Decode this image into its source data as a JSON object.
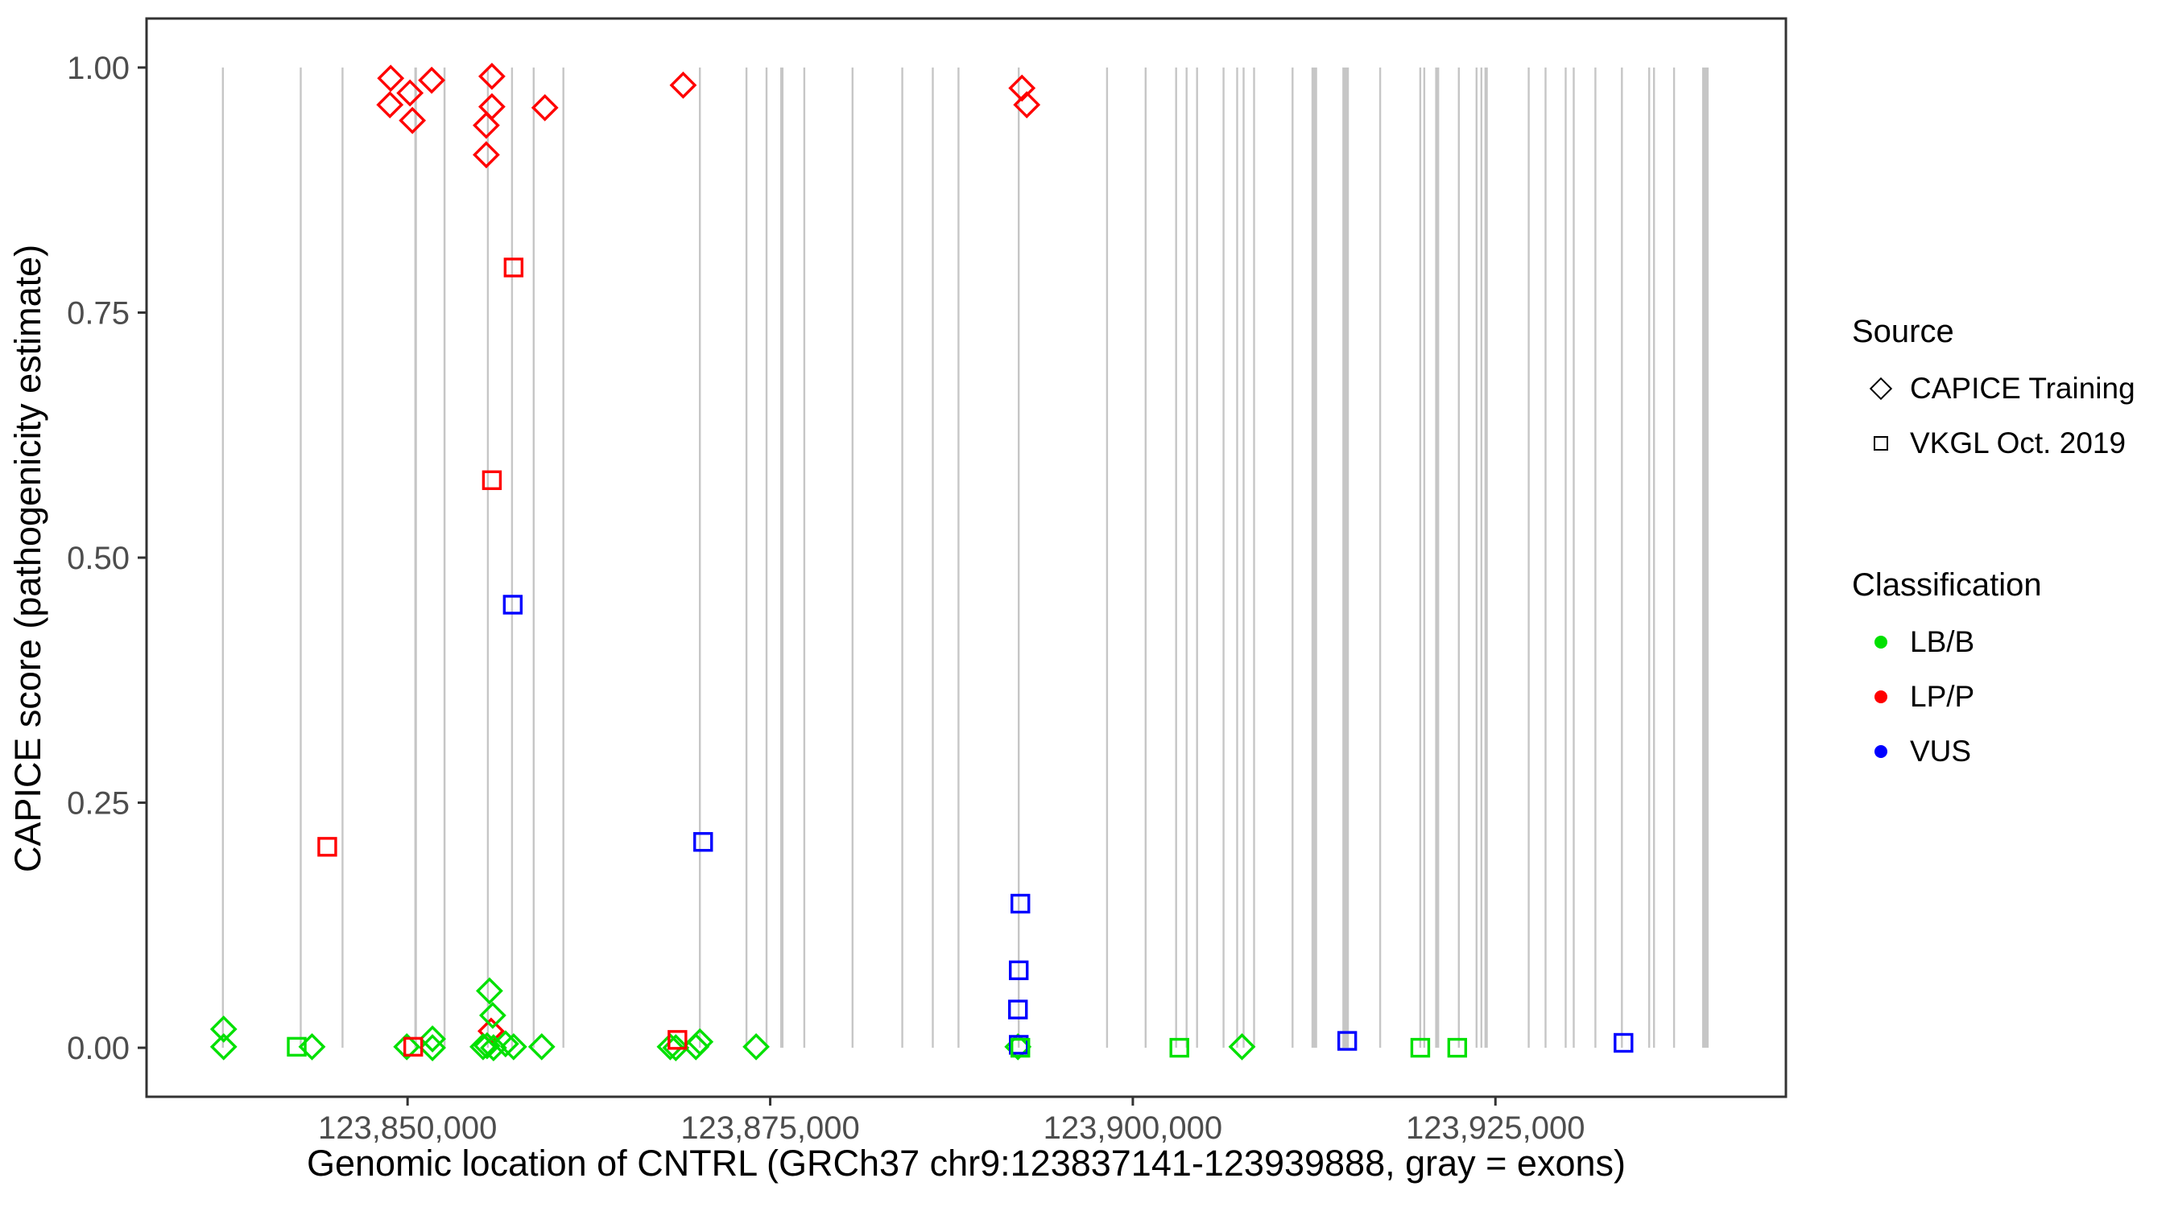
{
  "page": {
    "background": "#ffffff"
  },
  "axis_titles": {
    "x": "Genomic location of CNTRL (GRCh37 chr9:123837141-123939888, gray = exons)",
    "y": "CAPICE score (pathogenicity estimate)"
  },
  "legend": {
    "source": {
      "title": "Source",
      "items": [
        {
          "label": "CAPICE Training",
          "shape": "diamond"
        },
        {
          "label": "VKGL Oct. 2019",
          "shape": "square"
        }
      ]
    },
    "classification": {
      "title": "Classification",
      "items": [
        {
          "label": "LB/B",
          "color": "#00E000"
        },
        {
          "label": "LP/P",
          "color": "#FF0000"
        },
        {
          "label": "VUS",
          "color": "#0000FF"
        }
      ]
    }
  },
  "chart_data": {
    "type": "scatter",
    "title": "",
    "xlabel": "Genomic location of CNTRL (GRCh37 chr9:123837141-123939888, gray = exons)",
    "ylabel": "CAPICE score (pathogenicity estimate)",
    "xlim": [
      123832004,
      123945025
    ],
    "ylim": [
      -0.05,
      1.05
    ],
    "grid": false,
    "legend_position": "right",
    "x_ticks": [
      {
        "pos": 123850000,
        "label": "123,850,000"
      },
      {
        "pos": 123875000,
        "label": "123,875,000"
      },
      {
        "pos": 123900000,
        "label": "123,900,000"
      },
      {
        "pos": 123925000,
        "label": "123,925,000"
      }
    ],
    "y_ticks": [
      {
        "value": 0.0,
        "label": "0.00"
      },
      {
        "value": 0.25,
        "label": "0.25"
      },
      {
        "value": 0.5,
        "label": "0.50"
      },
      {
        "value": 0.75,
        "label": "0.75"
      },
      {
        "value": 1.0,
        "label": "1.00"
      }
    ],
    "colors": {
      "LB/B": "#00E000",
      "LP/P": "#FF0000",
      "VUS": "#0000FF"
    },
    "shape_by_source": {
      "CAPICE Training": "diamond",
      "VKGL Oct. 2019": "square"
    },
    "exon_color": "#C6C6C6",
    "exons": [
      {
        "pos": 123837265,
        "len": 130
      },
      {
        "pos": 123842636,
        "len": 130
      },
      {
        "pos": 123845515,
        "len": 130
      },
      {
        "pos": 123850554,
        "len": 180
      },
      {
        "pos": 123852547,
        "len": 140
      },
      {
        "pos": 123855537,
        "len": 130
      },
      {
        "pos": 123857198,
        "len": 130
      },
      {
        "pos": 123858693,
        "len": 130
      },
      {
        "pos": 123860742,
        "len": 130
      },
      {
        "pos": 123870154,
        "len": 130
      },
      {
        "pos": 123873365,
        "len": 130
      },
      {
        "pos": 123874749,
        "len": 130
      },
      {
        "pos": 123875801,
        "len": 230
      },
      {
        "pos": 123877352,
        "len": 130
      },
      {
        "pos": 123880674,
        "len": 130
      },
      {
        "pos": 123884107,
        "len": 130
      },
      {
        "pos": 123886211,
        "len": 130
      },
      {
        "pos": 123887983,
        "len": 130
      },
      {
        "pos": 123892135,
        "len": 130
      },
      {
        "pos": 123898226,
        "len": 130
      },
      {
        "pos": 123900884,
        "len": 130
      },
      {
        "pos": 123902988,
        "len": 130
      },
      {
        "pos": 123903707,
        "len": 130
      },
      {
        "pos": 123904427,
        "len": 130
      },
      {
        "pos": 123906254,
        "len": 130
      },
      {
        "pos": 123907196,
        "len": 130
      },
      {
        "pos": 123907638,
        "len": 130
      },
      {
        "pos": 123908358,
        "len": 130
      },
      {
        "pos": 123911016,
        "len": 130
      },
      {
        "pos": 123912511,
        "len": 390
      },
      {
        "pos": 123914670,
        "len": 450
      },
      {
        "pos": 123917051,
        "len": 130
      },
      {
        "pos": 123919820,
        "len": 130
      },
      {
        "pos": 123920097,
        "len": 130
      },
      {
        "pos": 123920983,
        "len": 280
      },
      {
        "pos": 123922478,
        "len": 130
      },
      {
        "pos": 123923696,
        "len": 130
      },
      {
        "pos": 123924028,
        "len": 130
      },
      {
        "pos": 123924360,
        "len": 230
      },
      {
        "pos": 123927295,
        "len": 130
      },
      {
        "pos": 123928457,
        "len": 130
      },
      {
        "pos": 123929842,
        "len": 130
      },
      {
        "pos": 123930395,
        "len": 130
      },
      {
        "pos": 123931890,
        "len": 130
      },
      {
        "pos": 123933717,
        "len": 130
      },
      {
        "pos": 123935600,
        "len": 130
      },
      {
        "pos": 123935932,
        "len": 130
      },
      {
        "pos": 123937316,
        "len": 130
      },
      {
        "pos": 123939476,
        "len": 450
      }
    ],
    "points": [
      {
        "pos": 123848837,
        "score": 0.989,
        "classification": "LP/P",
        "source": "CAPICE Training"
      },
      {
        "pos": 123851661,
        "score": 0.987,
        "classification": "LP/P",
        "source": "CAPICE Training"
      },
      {
        "pos": 123850166,
        "score": 0.974,
        "classification": "LP/P",
        "source": "CAPICE Training"
      },
      {
        "pos": 123848782,
        "score": 0.962,
        "classification": "LP/P",
        "source": "CAPICE Training"
      },
      {
        "pos": 123850332,
        "score": 0.946,
        "classification": "LP/P",
        "source": "CAPICE Training"
      },
      {
        "pos": 123855814,
        "score": 0.991,
        "classification": "LP/P",
        "source": "CAPICE Training"
      },
      {
        "pos": 123855814,
        "score": 0.96,
        "classification": "LP/P",
        "source": "CAPICE Training"
      },
      {
        "pos": 123855426,
        "score": 0.941,
        "classification": "LP/P",
        "source": "CAPICE Training"
      },
      {
        "pos": 123855426,
        "score": 0.911,
        "classification": "LP/P",
        "source": "CAPICE Training"
      },
      {
        "pos": 123859468,
        "score": 0.959,
        "classification": "LP/P",
        "source": "CAPICE Training"
      },
      {
        "pos": 123869000,
        "score": 0.982,
        "classification": "LP/P",
        "source": "CAPICE Training"
      },
      {
        "pos": 123892357,
        "score": 0.979,
        "classification": "LP/P",
        "source": "CAPICE Training"
      },
      {
        "pos": 123892689,
        "score": 0.962,
        "classification": "LP/P",
        "source": "CAPICE Training"
      },
      {
        "pos": 123855758,
        "score": 0.017,
        "classification": "LP/P",
        "source": "CAPICE Training"
      },
      {
        "pos": 123844463,
        "score": 0.205,
        "classification": "LP/P",
        "source": "VKGL Oct. 2019"
      },
      {
        "pos": 123855814,
        "score": 0.579,
        "classification": "LP/P",
        "source": "VKGL Oct. 2019"
      },
      {
        "pos": 123857309,
        "score": 0.796,
        "classification": "LP/P",
        "source": "VKGL Oct. 2019"
      },
      {
        "pos": 123850388,
        "score": 0.001,
        "classification": "LP/P",
        "source": "VKGL Oct. 2019"
      },
      {
        "pos": 123868604,
        "score": 0.008,
        "classification": "LP/P",
        "source": "VKGL Oct. 2019"
      },
      {
        "pos": 123857253,
        "score": 0.452,
        "classification": "VUS",
        "source": "VKGL Oct. 2019"
      },
      {
        "pos": 123870376,
        "score": 0.21,
        "classification": "VUS",
        "source": "VKGL Oct. 2019"
      },
      {
        "pos": 123892246,
        "score": 0.147,
        "classification": "VUS",
        "source": "VKGL Oct. 2019"
      },
      {
        "pos": 123892135,
        "score": 0.079,
        "classification": "VUS",
        "source": "VKGL Oct. 2019"
      },
      {
        "pos": 123892080,
        "score": 0.039,
        "classification": "VUS",
        "source": "VKGL Oct. 2019"
      },
      {
        "pos": 123892135,
        "score": 0.003,
        "classification": "VUS",
        "source": "VKGL Oct. 2019"
      },
      {
        "pos": 123914781,
        "score": 0.007,
        "classification": "VUS",
        "source": "VKGL Oct. 2019"
      },
      {
        "pos": 123933828,
        "score": 0.005,
        "classification": "VUS",
        "source": "VKGL Oct. 2019"
      },
      {
        "pos": 123837320,
        "score": 0.019,
        "classification": "LB/B",
        "source": "CAPICE Training"
      },
      {
        "pos": 123837320,
        "score": 0.001,
        "classification": "LB/B",
        "source": "CAPICE Training"
      },
      {
        "pos": 123843411,
        "score": 0.001,
        "classification": "LB/B",
        "source": "CAPICE Training"
      },
      {
        "pos": 123849945,
        "score": 0.001,
        "classification": "LB/B",
        "source": "CAPICE Training"
      },
      {
        "pos": 123851716,
        "score": 0.009,
        "classification": "LB/B",
        "source": "CAPICE Training"
      },
      {
        "pos": 123851716,
        "score": 0.0,
        "classification": "LB/B",
        "source": "CAPICE Training"
      },
      {
        "pos": 123855648,
        "score": 0.058,
        "classification": "LB/B",
        "source": "CAPICE Training"
      },
      {
        "pos": 123855869,
        "score": 0.033,
        "classification": "LB/B",
        "source": "CAPICE Training"
      },
      {
        "pos": 123855481,
        "score": 0.002,
        "classification": "LB/B",
        "source": "CAPICE Training"
      },
      {
        "pos": 123855205,
        "score": 0.001,
        "classification": "LB/B",
        "source": "CAPICE Training"
      },
      {
        "pos": 123855925,
        "score": 0.0,
        "classification": "LB/B",
        "source": "CAPICE Training"
      },
      {
        "pos": 123856755,
        "score": 0.004,
        "classification": "LB/B",
        "source": "CAPICE Training"
      },
      {
        "pos": 123857309,
        "score": 0.001,
        "classification": "LB/B",
        "source": "CAPICE Training"
      },
      {
        "pos": 123859247,
        "score": 0.001,
        "classification": "LB/B",
        "source": "CAPICE Training"
      },
      {
        "pos": 123868106,
        "score": 0.001,
        "classification": "LB/B",
        "source": "CAPICE Training"
      },
      {
        "pos": 123868493,
        "score": 0.0,
        "classification": "LB/B",
        "source": "CAPICE Training"
      },
      {
        "pos": 123869877,
        "score": 0.001,
        "classification": "LB/B",
        "source": "CAPICE Training"
      },
      {
        "pos": 123870154,
        "score": 0.006,
        "classification": "LB/B",
        "source": "CAPICE Training"
      },
      {
        "pos": 123874030,
        "score": 0.001,
        "classification": "LB/B",
        "source": "CAPICE Training"
      },
      {
        "pos": 123892080,
        "score": 0.001,
        "classification": "LB/B",
        "source": "CAPICE Training"
      },
      {
        "pos": 123907527,
        "score": 0.001,
        "classification": "LB/B",
        "source": "CAPICE Training"
      },
      {
        "pos": 123842359,
        "score": 0.001,
        "classification": "LB/B",
        "source": "VKGL Oct. 2019"
      },
      {
        "pos": 123892246,
        "score": 0.0,
        "classification": "LB/B",
        "source": "VKGL Oct. 2019"
      },
      {
        "pos": 123903209,
        "score": 0.0,
        "classification": "LB/B",
        "source": "VKGL Oct. 2019"
      },
      {
        "pos": 123919820,
        "score": 0.0,
        "classification": "LB/B",
        "source": "VKGL Oct. 2019"
      },
      {
        "pos": 123922367,
        "score": 0.0,
        "classification": "LB/B",
        "source": "VKGL Oct. 2019"
      }
    ]
  }
}
